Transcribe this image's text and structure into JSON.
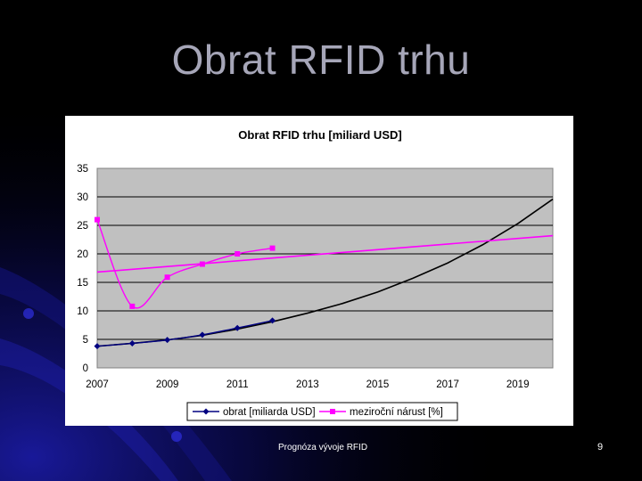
{
  "slide": {
    "title": "Obrat RFID trhu",
    "footer": "Prognóza vývoje RFID",
    "page_number": "9"
  },
  "colors": {
    "background": "#000000",
    "title": "#a6a6b8",
    "plot_area": "#c0c0c0",
    "series_obrat": "#000080",
    "series_narust": "#ff00ff"
  },
  "chart_data": {
    "type": "line",
    "title": "Obrat RFID trhu [miliard USD]",
    "xlabel": "",
    "ylabel": "",
    "xlim": [
      2007,
      2020
    ],
    "ylim": [
      0,
      35
    ],
    "yticks": [
      0,
      5,
      10,
      15,
      20,
      25,
      30,
      35
    ],
    "xticks": [
      2007,
      2009,
      2011,
      2013,
      2015,
      2017,
      2019
    ],
    "grid": "horizontal",
    "legend_position": "bottom",
    "series": [
      {
        "name": "obrat [miliarda USD]",
        "color": "#000080",
        "marker": "diamond",
        "x": [
          2007,
          2008,
          2009,
          2010,
          2011,
          2012
        ],
        "values": [
          3.8,
          4.3,
          4.9,
          5.8,
          7.0,
          8.3
        ]
      },
      {
        "name": "meziroční nárust [%]",
        "color": "#ff00ff",
        "marker": "square",
        "x": [
          2007,
          2008,
          2009,
          2010,
          2011,
          2012
        ],
        "values": [
          26.0,
          10.8,
          15.9,
          18.2,
          20.0,
          21.0
        ]
      }
    ],
    "trendlines": [
      {
        "name": "obrat trend (exponential)",
        "color": "#000000",
        "type": "exponential",
        "x": [
          2007,
          2008,
          2009,
          2010,
          2011,
          2012,
          2013,
          2014,
          2015,
          2016,
          2017,
          2018,
          2019,
          2020
        ],
        "values": [
          3.8,
          4.3,
          4.9,
          5.7,
          6.8,
          8.1,
          9.6,
          11.3,
          13.3,
          15.7,
          18.4,
          21.6,
          25.3,
          29.6
        ]
      },
      {
        "name": "meziroční nárust trend (linear)",
        "color": "#ff00ff",
        "type": "linear",
        "x": [
          2007,
          2020
        ],
        "values": [
          16.8,
          23.2
        ]
      }
    ]
  }
}
